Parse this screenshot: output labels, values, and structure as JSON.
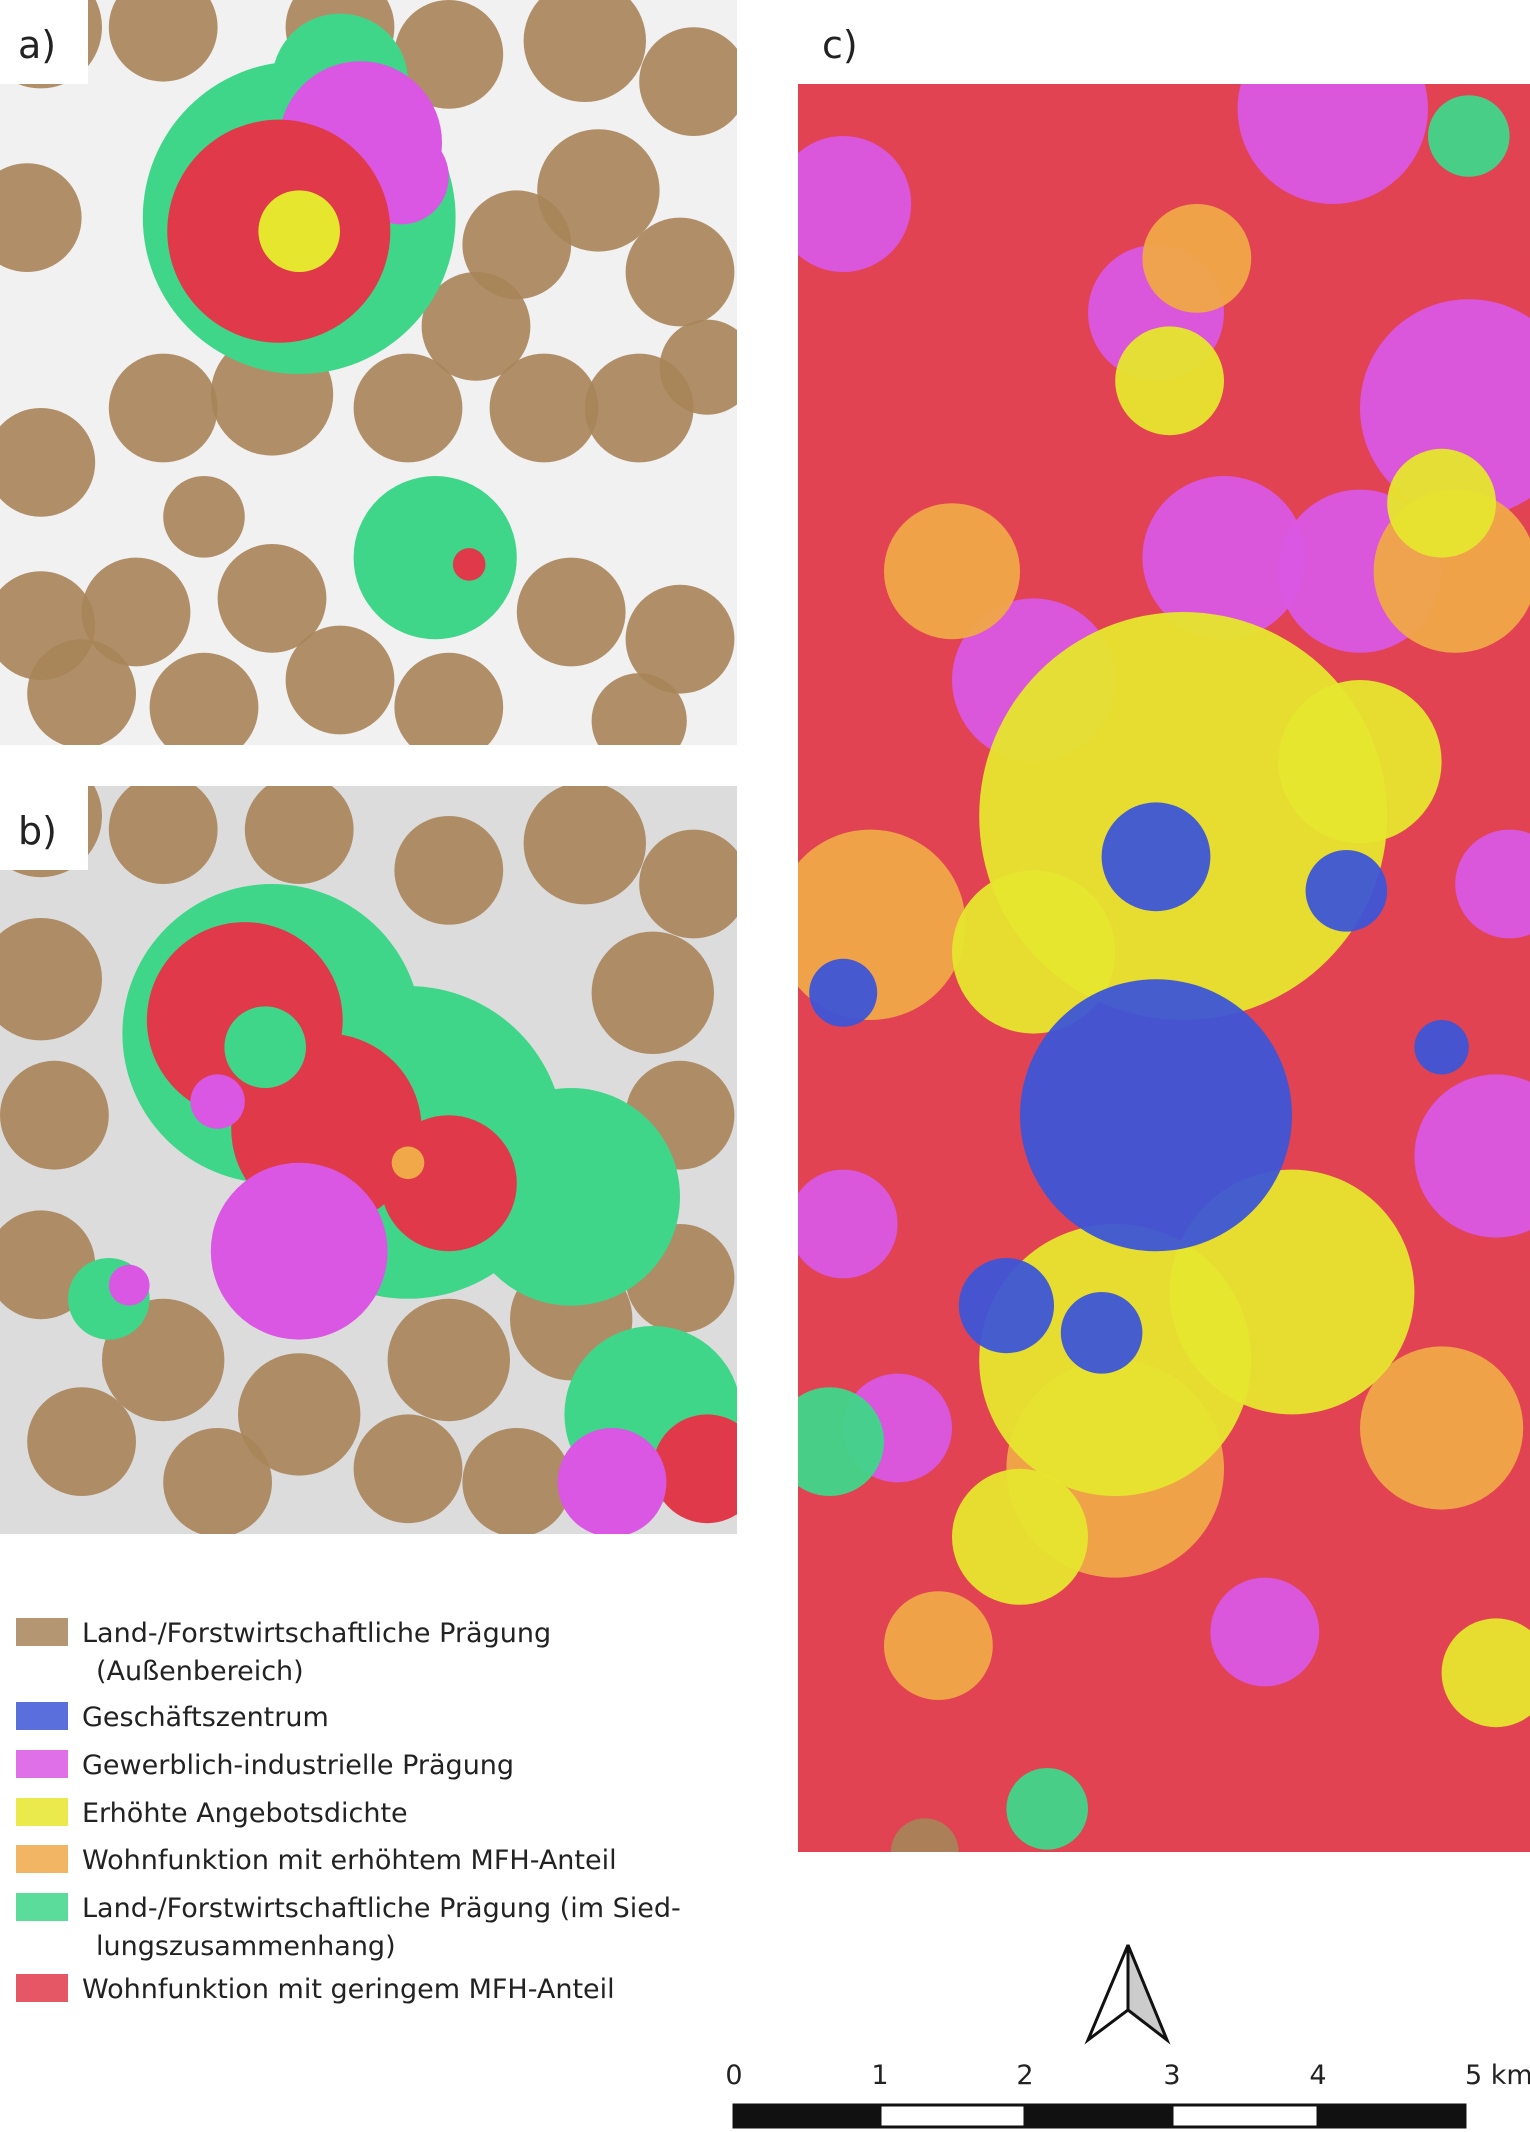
{
  "panels": [
    {
      "label": "a)"
    },
    {
      "label": "b)"
    },
    {
      "label": "c)"
    }
  ],
  "legend": [
    {
      "lines": [
        "Land-/Forstwirtschaftliche Prägung",
        "(Außenbereich)"
      ],
      "color": "#a88459"
    },
    {
      "lines": [
        "Geschäftszentrum"
      ],
      "color": "#3d55d6"
    },
    {
      "lines": [
        "Gewerblich-industrielle Prägung"
      ],
      "color": "#d957e3"
    },
    {
      "lines": [
        "Erhöhte Angebotsdichte"
      ],
      "color": "#e6e62e"
    },
    {
      "lines": [
        "Wohnfunktion mit erhöhtem MFH-Anteil"
      ],
      "color": "#f0a848"
    },
    {
      "lines": [
        "Land-/Forstwirtschaftliche Prägung (im Sied-",
        "lungszusammenhang)"
      ],
      "color": "#3fd68a"
    },
    {
      "lines": [
        "Wohnfunktion mit geringem MFH-Anteil"
      ],
      "color": "#e03a4a"
    }
  ],
  "scale_bar": {
    "labels": [
      "0",
      "1",
      "2",
      "3",
      "4",
      "5 km"
    ]
  }
}
